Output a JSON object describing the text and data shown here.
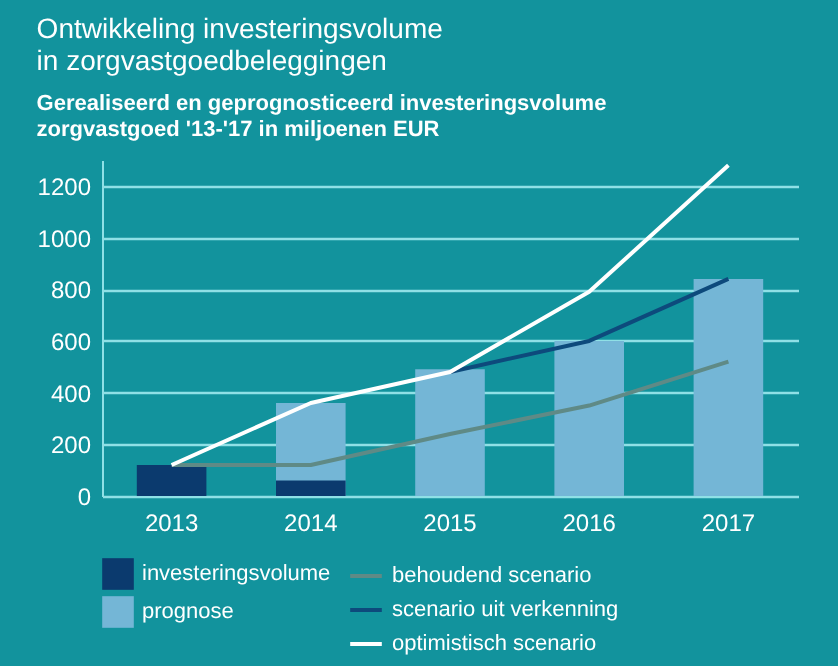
{
  "chart_data": {
    "type": "bar",
    "title": "Ontwikkeling investeringsvolume\nin zorgvastgoedbeleggingen",
    "subtitle": "Gerealiseerd en geprognosticeerd investeringsvolume\nzorgvastgoed '13-'17 in miljoenen EUR",
    "categories": [
      "2013",
      "2014",
      "2015",
      "2016",
      "2017"
    ],
    "series": [
      {
        "name": "investeringsvolume",
        "color": "#0b3a6e",
        "values": [
          120,
          60,
          null,
          null,
          null
        ]
      },
      {
        "name": "prognose",
        "color": "#74b6d6",
        "values": [
          null,
          360,
          490,
          600,
          840
        ]
      },
      {
        "name": "behoudend scenario",
        "type": "line",
        "color": "#5f8a86",
        "values": [
          120,
          120,
          240,
          350,
          520
        ]
      },
      {
        "name": "scenario uit verkenning",
        "type": "line",
        "color": "#0d4a7c",
        "values": [
          null,
          null,
          480,
          600,
          840
        ]
      },
      {
        "name": "optimistisch scenario",
        "type": "line",
        "color": "#ffffff",
        "values": [
          120,
          360,
          480,
          790,
          1280
        ]
      }
    ],
    "ylim": [
      0,
      1300
    ],
    "yticks": [
      0,
      200,
      400,
      600,
      800,
      1000,
      1200
    ],
    "grid": "y",
    "legend": "bottom"
  }
}
